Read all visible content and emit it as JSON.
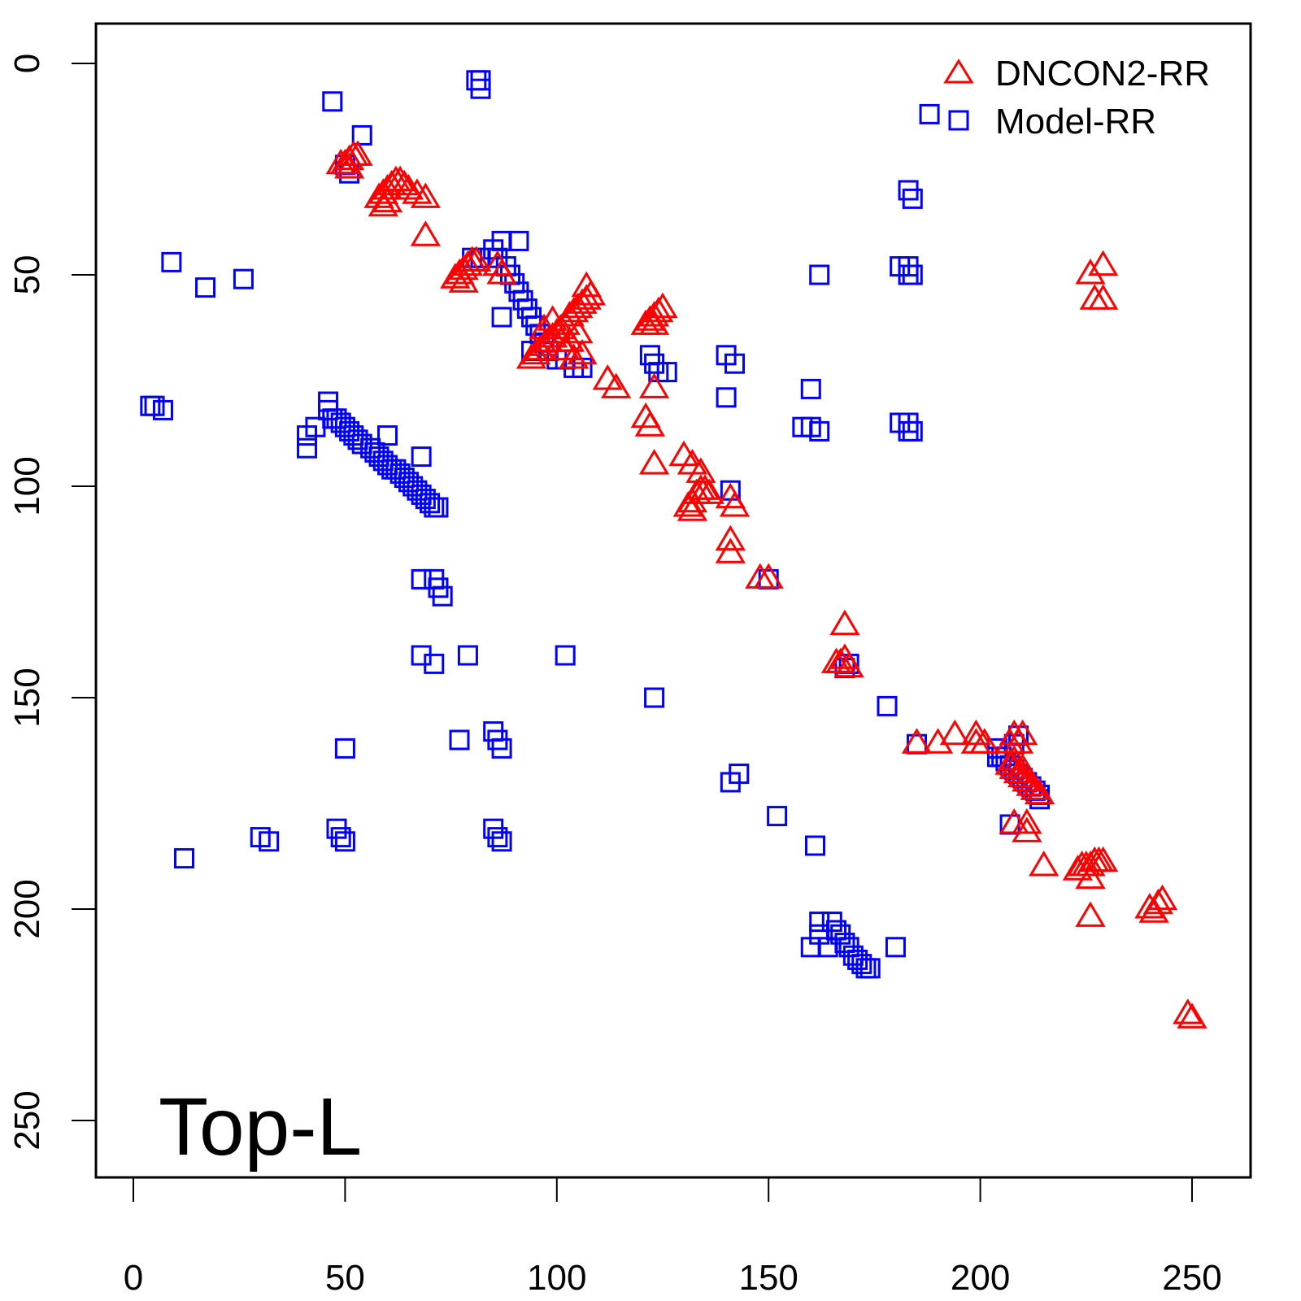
{
  "chart_data": {
    "type": "scatter",
    "title": "",
    "xlabel": "",
    "ylabel": "",
    "xlim": [
      -9,
      264
    ],
    "ylim": [
      -9,
      263
    ],
    "y_reversed": true,
    "grid": false,
    "x_ticks": [
      0,
      50,
      100,
      150,
      200,
      250
    ],
    "x_tick_labels": [
      "0",
      "50",
      "100",
      "150",
      "200",
      "250"
    ],
    "y_ticks": [
      0,
      50,
      100,
      150,
      200,
      250
    ],
    "y_tick_labels": [
      "0",
      "50",
      "100",
      "150",
      "200",
      "250"
    ],
    "annotation": "Top-L",
    "legend_position": "top-right",
    "series": [
      {
        "name": "DNCON2-RR",
        "marker": "triangle-open",
        "color": "#ff0000",
        "points": [
          [
            49,
            24
          ],
          [
            50,
            24
          ],
          [
            51,
            23
          ],
          [
            52,
            22
          ],
          [
            53,
            22
          ],
          [
            51,
            25
          ],
          [
            58,
            32
          ],
          [
            59,
            31
          ],
          [
            60,
            30
          ],
          [
            61,
            29
          ],
          [
            62,
            28
          ],
          [
            63,
            28
          ],
          [
            64,
            29
          ],
          [
            65,
            30
          ],
          [
            67,
            31
          ],
          [
            69,
            32
          ],
          [
            60,
            33
          ],
          [
            59,
            34
          ],
          [
            69,
            41
          ],
          [
            76,
            51
          ],
          [
            77,
            50
          ],
          [
            78,
            49
          ],
          [
            79,
            48
          ],
          [
            80,
            47
          ],
          [
            81,
            47
          ],
          [
            78,
            52
          ],
          [
            86,
            48
          ],
          [
            87,
            50
          ],
          [
            94,
            70
          ],
          [
            95,
            69
          ],
          [
            96,
            68
          ],
          [
            97,
            67
          ],
          [
            98,
            66
          ],
          [
            99,
            65
          ],
          [
            100,
            64
          ],
          [
            101,
            63
          ],
          [
            102,
            62
          ],
          [
            103,
            60
          ],
          [
            104,
            59
          ],
          [
            105,
            58
          ],
          [
            106,
            57
          ],
          [
            107,
            56
          ],
          [
            108,
            55
          ],
          [
            107,
            53
          ],
          [
            102,
            68
          ],
          [
            104,
            70
          ],
          [
            106,
            69
          ],
          [
            97,
            63
          ],
          [
            99,
            61
          ],
          [
            101,
            66
          ],
          [
            103,
            66
          ],
          [
            105,
            64
          ],
          [
            112,
            75
          ],
          [
            114,
            77
          ],
          [
            121,
            62
          ],
          [
            122,
            61
          ],
          [
            123,
            60
          ],
          [
            124,
            59
          ],
          [
            125,
            58
          ],
          [
            123,
            62
          ],
          [
            123,
            77
          ],
          [
            121,
            84
          ],
          [
            122,
            86
          ],
          [
            123,
            95
          ],
          [
            130,
            93
          ],
          [
            132,
            95
          ],
          [
            134,
            97
          ],
          [
            131,
            105
          ],
          [
            132,
            104
          ],
          [
            133,
            102
          ],
          [
            134,
            101
          ],
          [
            135,
            101
          ],
          [
            136,
            102
          ],
          [
            132,
            106
          ],
          [
            141,
            103
          ],
          [
            142,
            105
          ],
          [
            141,
            113
          ],
          [
            141,
            116
          ],
          [
            148,
            122
          ],
          [
            150,
            122
          ],
          [
            168,
            133
          ],
          [
            166,
            142
          ],
          [
            167,
            142
          ],
          [
            168,
            141
          ],
          [
            169,
            143
          ],
          [
            185,
            161
          ],
          [
            190,
            161
          ],
          [
            194,
            159
          ],
          [
            199,
            159
          ],
          [
            199,
            161
          ],
          [
            201,
            161
          ],
          [
            208,
            159
          ],
          [
            210,
            159
          ],
          [
            207,
            161
          ],
          [
            209,
            161
          ],
          [
            207,
            166
          ],
          [
            208,
            167
          ],
          [
            209,
            168
          ],
          [
            210,
            169
          ],
          [
            211,
            170
          ],
          [
            212,
            171
          ],
          [
            213,
            172
          ],
          [
            214,
            173
          ],
          [
            208,
            165
          ],
          [
            210,
            167
          ],
          [
            208,
            180
          ],
          [
            211,
            180
          ],
          [
            211,
            182
          ],
          [
            215,
            190
          ],
          [
            223,
            191
          ],
          [
            224,
            190
          ],
          [
            225,
            190
          ],
          [
            226,
            190
          ],
          [
            227,
            189
          ],
          [
            228,
            189
          ],
          [
            229,
            189
          ],
          [
            226,
            193
          ],
          [
            226,
            202
          ],
          [
            240,
            200
          ],
          [
            241,
            201
          ],
          [
            242,
            199
          ],
          [
            243,
            198
          ],
          [
            249,
            225
          ],
          [
            250,
            226
          ],
          [
            226,
            50
          ],
          [
            229,
            48
          ],
          [
            227,
            56
          ],
          [
            229,
            56
          ]
        ]
      },
      {
        "name": "Model-RR",
        "marker": "square-open",
        "color": "#0000ff",
        "points": [
          [
            47,
            9
          ],
          [
            81,
            4
          ],
          [
            82,
            4
          ],
          [
            82,
            6
          ],
          [
            54,
            17
          ],
          [
            51,
            26
          ],
          [
            50,
            24
          ],
          [
            188,
            12
          ],
          [
            9,
            47
          ],
          [
            17,
            53
          ],
          [
            26,
            51
          ],
          [
            4,
            81
          ],
          [
            5,
            81
          ],
          [
            7,
            82
          ],
          [
            183,
            30
          ],
          [
            184,
            32
          ],
          [
            162,
            50
          ],
          [
            181,
            48
          ],
          [
            183,
            48
          ],
          [
            184,
            50
          ],
          [
            183,
            50
          ],
          [
            46,
            80
          ],
          [
            46,
            82
          ],
          [
            47,
            84
          ],
          [
            48,
            84
          ],
          [
            49,
            85
          ],
          [
            50,
            86
          ],
          [
            51,
            87
          ],
          [
            52,
            88
          ],
          [
            53,
            89
          ],
          [
            54,
            90
          ],
          [
            56,
            91
          ],
          [
            57,
            92
          ],
          [
            58,
            93
          ],
          [
            59,
            94
          ],
          [
            60,
            95
          ],
          [
            61,
            96
          ],
          [
            62,
            96
          ],
          [
            63,
            97
          ],
          [
            64,
            98
          ],
          [
            65,
            99
          ],
          [
            66,
            100
          ],
          [
            67,
            101
          ],
          [
            68,
            102
          ],
          [
            69,
            103
          ],
          [
            70,
            104
          ],
          [
            71,
            105
          ],
          [
            72,
            105
          ],
          [
            41,
            88
          ],
          [
            41,
            91
          ],
          [
            43,
            86
          ],
          [
            60,
            88
          ],
          [
            68,
            93
          ],
          [
            80,
            46
          ],
          [
            82,
            46
          ],
          [
            85,
            44
          ],
          [
            87,
            42
          ],
          [
            91,
            42
          ],
          [
            86,
            46
          ],
          [
            88,
            48
          ],
          [
            89,
            50
          ],
          [
            90,
            52
          ],
          [
            91,
            54
          ],
          [
            92,
            56
          ],
          [
            93,
            58
          ],
          [
            94,
            60
          ],
          [
            95,
            62
          ],
          [
            96,
            64
          ],
          [
            97,
            66
          ],
          [
            98,
            68
          ],
          [
            100,
            70
          ],
          [
            102,
            70
          ],
          [
            104,
            72
          ],
          [
            106,
            72
          ],
          [
            87,
            60
          ],
          [
            94,
            68
          ],
          [
            122,
            69
          ],
          [
            123,
            71
          ],
          [
            124,
            73
          ],
          [
            126,
            73
          ],
          [
            140,
            69
          ],
          [
            142,
            71
          ],
          [
            140,
            79
          ],
          [
            160,
            77
          ],
          [
            158,
            86
          ],
          [
            160,
            86
          ],
          [
            162,
            87
          ],
          [
            181,
            85
          ],
          [
            183,
            87
          ],
          [
            184,
            87
          ],
          [
            183,
            85
          ],
          [
            141,
            101
          ],
          [
            68,
            122
          ],
          [
            71,
            122
          ],
          [
            72,
            124
          ],
          [
            73,
            126
          ],
          [
            68,
            140
          ],
          [
            71,
            142
          ],
          [
            79,
            140
          ],
          [
            102,
            140
          ],
          [
            150,
            122
          ],
          [
            169,
            142
          ],
          [
            168,
            143
          ],
          [
            123,
            150
          ],
          [
            178,
            152
          ],
          [
            185,
            161
          ],
          [
            77,
            160
          ],
          [
            85,
            158
          ],
          [
            86,
            160
          ],
          [
            87,
            162
          ],
          [
            50,
            162
          ],
          [
            143,
            168
          ],
          [
            141,
            170
          ],
          [
            152,
            178
          ],
          [
            161,
            185
          ],
          [
            48,
            181
          ],
          [
            49,
            183
          ],
          [
            50,
            184
          ],
          [
            85,
            181
          ],
          [
            86,
            183
          ],
          [
            87,
            184
          ],
          [
            30,
            183
          ],
          [
            32,
            184
          ],
          [
            12,
            188
          ],
          [
            204,
            162
          ],
          [
            205,
            164
          ],
          [
            206,
            165
          ],
          [
            207,
            166
          ],
          [
            208,
            167
          ],
          [
            209,
            168
          ],
          [
            210,
            169
          ],
          [
            211,
            170
          ],
          [
            212,
            171
          ],
          [
            213,
            172
          ],
          [
            214,
            173
          ],
          [
            214,
            174
          ],
          [
            209,
            159
          ],
          [
            208,
            161
          ],
          [
            204,
            164
          ],
          [
            207,
            180
          ],
          [
            160,
            209
          ],
          [
            162,
            203
          ],
          [
            162,
            206
          ],
          [
            164,
            209
          ],
          [
            165,
            203
          ],
          [
            166,
            205
          ],
          [
            167,
            206
          ],
          [
            168,
            208
          ],
          [
            169,
            209
          ],
          [
            170,
            211
          ],
          [
            171,
            212
          ],
          [
            172,
            213
          ],
          [
            173,
            214
          ],
          [
            174,
            214
          ],
          [
            180,
            209
          ]
        ]
      }
    ]
  }
}
